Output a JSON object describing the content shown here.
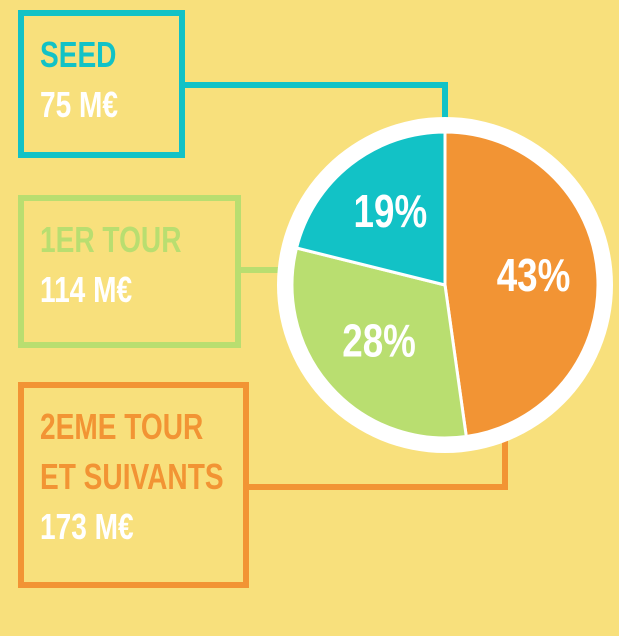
{
  "chart_data": {
    "type": "pie",
    "categories": [
      "SEED",
      "1ER TOUR",
      "2EME TOUR ET SUIVANTS"
    ],
    "amount_labels": [
      "75 M€",
      "114 M€",
      "173 M€"
    ],
    "values": [
      19,
      28,
      43
    ],
    "value_labels": [
      "19%",
      "28%",
      "43%"
    ],
    "colors": [
      "#12c2c6",
      "#b9de70",
      "#f29434"
    ]
  }
}
